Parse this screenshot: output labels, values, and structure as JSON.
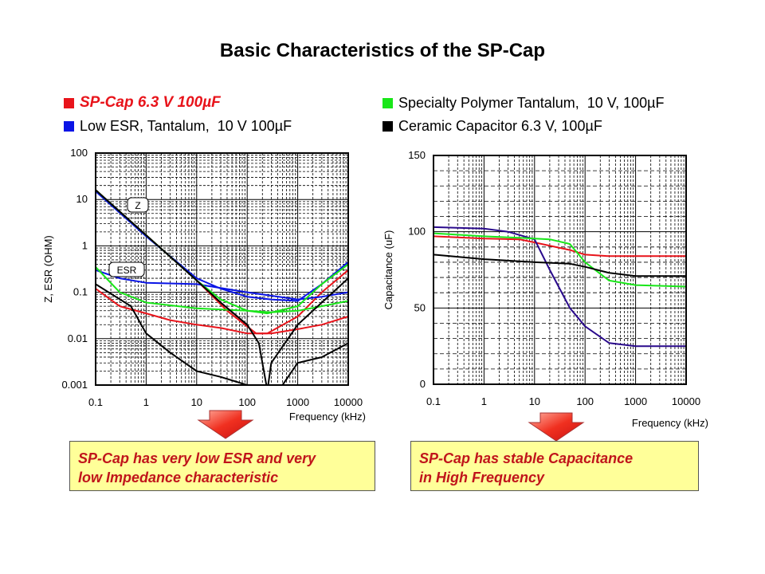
{
  "title": "Basic Characteristics of the SP-Cap",
  "legend": [
    {
      "label": "SP-Cap 6.3 V 100µF",
      "color": "#e8141b"
    },
    {
      "label": "Low ESR, Tantalum,  10 V 100µF",
      "color": "#0a14e6"
    },
    {
      "label": "Specialty Polymer Tantalum,  10 V, 100µF",
      "color": "#19e619"
    },
    {
      "label": "Ceramic Capacitor 6.3 V, 100µF",
      "color": "#000000"
    }
  ],
  "chart_data": [
    {
      "type": "line",
      "title": "",
      "xlabel": "Frequency (kHz)",
      "ylabel": "Z, ESR (OHM)",
      "xscale": "log",
      "yscale": "log",
      "xlim": [
        0.1,
        10000
      ],
      "ylim": [
        0.001,
        100
      ],
      "xticks": [
        "0.1",
        "1",
        "10",
        "100",
        "1000",
        "10000"
      ],
      "yticks": [
        "0.001",
        "0.01",
        "0.1",
        "1",
        "10",
        "100"
      ],
      "annotations": [
        "Z",
        "ESR"
      ],
      "grid": true,
      "series": [
        {
          "name": "SP-Cap Z",
          "color": "#e8141b",
          "x": [
            0.1,
            1,
            10,
            40,
            150,
            250,
            1000,
            3000,
            10000
          ],
          "y": [
            16,
            1.7,
            0.18,
            0.04,
            0.013,
            0.013,
            0.03,
            0.1,
            0.3
          ]
        },
        {
          "name": "SP-Cap ESR",
          "color": "#e8141b",
          "x": [
            0.1,
            0.3,
            1,
            3,
            10,
            30,
            100,
            300,
            1000,
            3000,
            10000
          ],
          "y": [
            0.12,
            0.05,
            0.035,
            0.025,
            0.02,
            0.017,
            0.013,
            0.013,
            0.016,
            0.02,
            0.03
          ]
        },
        {
          "name": "Low ESR Tantalum Z",
          "color": "#0a14e6",
          "x": [
            0.1,
            1,
            10,
            30,
            100,
            300,
            1000,
            3000,
            10000
          ],
          "y": [
            15,
            1.6,
            0.2,
            0.12,
            0.08,
            0.07,
            0.065,
            0.15,
            0.45
          ]
        },
        {
          "name": "Low ESR Tantalum ESR",
          "color": "#0a14e6",
          "x": [
            0.1,
            0.3,
            1,
            10,
            100,
            1000,
            3000,
            10000
          ],
          "y": [
            0.3,
            0.2,
            0.16,
            0.15,
            0.1,
            0.07,
            0.08,
            0.1
          ]
        },
        {
          "name": "Specialty Polymer Tantalum Z",
          "color": "#19e619",
          "x": [
            0.1,
            1,
            10,
            30,
            100,
            250,
            1000,
            3000,
            10000
          ],
          "y": [
            16,
            1.7,
            0.18,
            0.07,
            0.04,
            0.035,
            0.05,
            0.15,
            0.4
          ]
        },
        {
          "name": "Specialty Polymer Tantalum ESR",
          "color": "#19e619",
          "x": [
            0.1,
            0.3,
            1,
            10,
            100,
            300,
            1000,
            3000,
            10000
          ],
          "y": [
            0.35,
            0.1,
            0.06,
            0.045,
            0.04,
            0.037,
            0.04,
            0.05,
            0.065
          ]
        },
        {
          "name": "Ceramic Capacitor Z",
          "color": "#000000",
          "x": [
            0.1,
            1,
            10,
            30,
            100,
            170,
            240,
            260,
            300,
            1000,
            3000,
            10000
          ],
          "y": [
            16,
            1.7,
            0.18,
            0.06,
            0.02,
            0.008,
            0.001,
            0.001,
            0.003,
            0.02,
            0.06,
            0.2
          ]
        },
        {
          "name": "Ceramic Capacitor ESR",
          "color": "#000000",
          "x": [
            0.1,
            0.5,
            1,
            3,
            10,
            30,
            100,
            500,
            1000,
            3000,
            10000
          ],
          "y": [
            0.15,
            0.05,
            0.013,
            0.005,
            0.002,
            0.0015,
            0.001,
            0.001,
            0.003,
            0.004,
            0.008
          ]
        }
      ]
    },
    {
      "type": "line",
      "title": "",
      "xlabel": "Frequency (kHz)",
      "ylabel": "Capacitance (uF)",
      "xscale": "log",
      "yscale": "linear",
      "xlim": [
        0.1,
        10000
      ],
      "ylim": [
        0,
        150
      ],
      "xticks": [
        "0.1",
        "1",
        "10",
        "100",
        "1000",
        "10000"
      ],
      "yticks": [
        "0",
        "50",
        "100",
        "150"
      ],
      "grid": true,
      "series": [
        {
          "name": "SP-Cap",
          "color": "#e8141b",
          "x": [
            0.1,
            1,
            5,
            10,
            50,
            100,
            300,
            10000
          ],
          "y": [
            97,
            95.5,
            95,
            93,
            88,
            85,
            84,
            84
          ]
        },
        {
          "name": "Low ESR Tantalum",
          "color": "#2a0a8c",
          "x": [
            0.1,
            1,
            3,
            10,
            20,
            50,
            100,
            300,
            1000,
            10000
          ],
          "y": [
            103,
            102,
            100,
            95,
            75,
            50,
            38,
            27,
            25,
            25
          ]
        },
        {
          "name": "Specialty Polymer Tantalum",
          "color": "#19e619",
          "x": [
            0.1,
            1,
            5,
            20,
            50,
            100,
            300,
            1000,
            10000
          ],
          "y": [
            99,
            97,
            96,
            95,
            92,
            80,
            68,
            65,
            64
          ]
        },
        {
          "name": "Ceramic Capacitor",
          "color": "#000000",
          "x": [
            0.1,
            1,
            10,
            50,
            100,
            300,
            1000,
            10000
          ],
          "y": [
            85,
            82,
            80,
            79,
            77,
            73,
            71,
            71
          ]
        }
      ]
    }
  ],
  "conclusions": {
    "left": [
      "SP-Cap has very low ESR and very",
      "low Impedance characteristic"
    ],
    "right": [
      "SP-Cap has stable Capacitance",
      "in High Frequency"
    ]
  }
}
